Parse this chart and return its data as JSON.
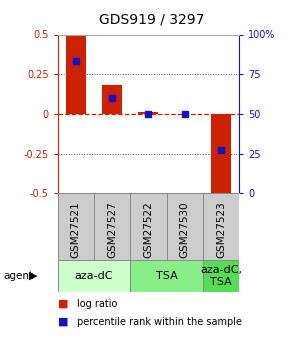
{
  "title": "GDS919 / 3297",
  "samples": [
    "GSM27521",
    "GSM27527",
    "GSM27522",
    "GSM27530",
    "GSM27523"
  ],
  "log_ratios": [
    0.5,
    0.18,
    0.01,
    0.0,
    -0.5
  ],
  "percentile_ranks": [
    0.83,
    0.6,
    0.5,
    0.5,
    0.27
  ],
  "ylim_left": [
    -0.5,
    0.5
  ],
  "ylim_right": [
    0.0,
    1.0
  ],
  "yticks_left": [
    -0.5,
    -0.25,
    0.0,
    0.25,
    0.5
  ],
  "yticks_right": [
    0.0,
    0.25,
    0.5,
    0.75,
    1.0
  ],
  "ytick_labels_right": [
    "0",
    "25",
    "50",
    "75",
    "100%"
  ],
  "ytick_labels_left": [
    "-0.5",
    "-0.25",
    "0",
    "0.25",
    "0.5"
  ],
  "bar_color": "#cc2200",
  "marker_color": "#1111cc",
  "agent_groups": [
    {
      "label": "aza-dC",
      "start": 0,
      "end": 2,
      "color": "#ccffcc"
    },
    {
      "label": "TSA",
      "start": 2,
      "end": 4,
      "color": "#88ee88"
    },
    {
      "label": "aza-dC,\nTSA",
      "start": 4,
      "end": 5,
      "color": "#55dd55"
    }
  ],
  "legend_items": [
    {
      "color": "#cc2200",
      "label": "log ratio"
    },
    {
      "color": "#1111cc",
      "label": "percentile rank within the sample"
    }
  ],
  "bar_width": 0.55,
  "hline_color": "#cc2200",
  "dotted_color": "#555555",
  "background_color": "#ffffff",
  "plot_bg": "#ffffff",
  "title_fontsize": 10,
  "tick_fontsize": 7,
  "agent_label_fontsize": 8,
  "sample_fontsize": 7.5,
  "sample_box_color": "#cccccc",
  "sample_box_edge": "#888888"
}
